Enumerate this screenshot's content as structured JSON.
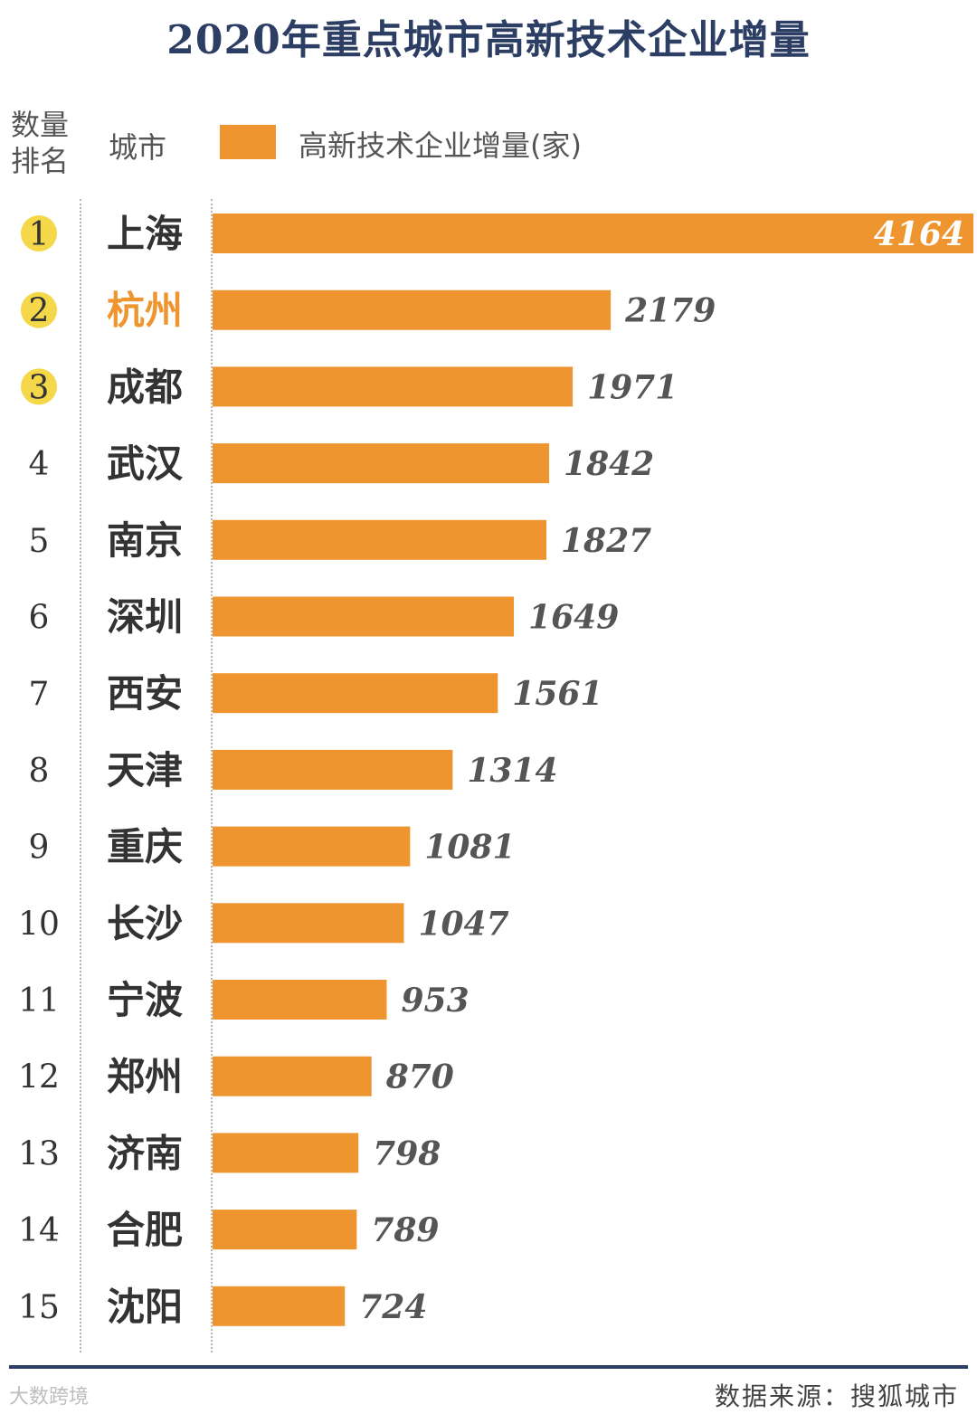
{
  "header": {
    "rank_label_line1": "数量",
    "rank_label_line2": "排名",
    "city_label": "城市"
  },
  "footer": {
    "source": "数据来源：搜狐城市",
    "watermark": "大数跨境"
  },
  "colors": {
    "bar": "#ee9530",
    "title": "#2c3e63",
    "badge": "#f4d84a",
    "highlight_city": "#ee9530",
    "value_inside": "#ffffff",
    "value_outside": "#555555"
  },
  "chart_data": {
    "type": "bar",
    "orientation": "horizontal",
    "title": "2020年重点城市高新技术企业增量",
    "series": [
      {
        "name": "高新技术企业增量(家)"
      }
    ],
    "ranks": [
      1,
      2,
      3,
      4,
      5,
      6,
      7,
      8,
      9,
      10,
      11,
      12,
      13,
      14,
      15
    ],
    "categories": [
      "上海",
      "杭州",
      "成都",
      "武汉",
      "南京",
      "深圳",
      "西安",
      "天津",
      "重庆",
      "长沙",
      "宁波",
      "郑州",
      "济南",
      "合肥",
      "沈阳"
    ],
    "values": [
      4164,
      2179,
      1971,
      1842,
      1827,
      1649,
      1561,
      1314,
      1081,
      1047,
      953,
      870,
      798,
      789,
      724
    ],
    "badged_ranks": [
      1,
      2,
      3
    ],
    "highlighted_category": "杭州",
    "xlim": [
      0,
      4164
    ]
  }
}
